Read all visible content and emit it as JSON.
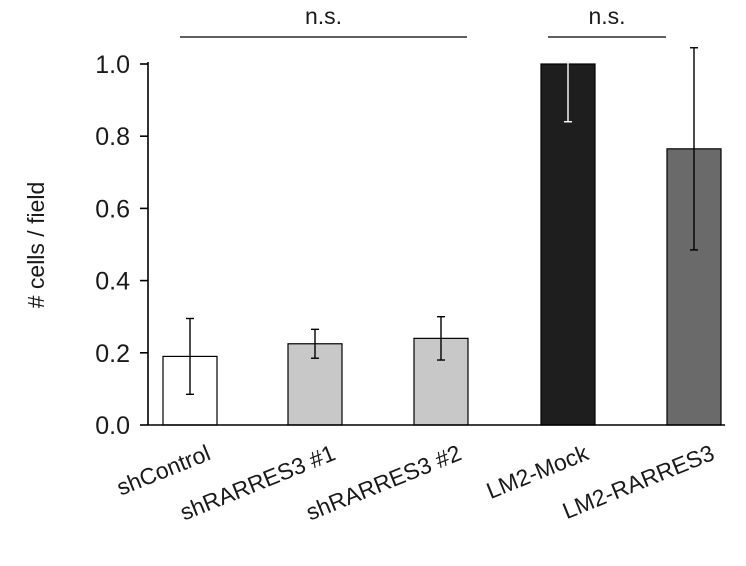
{
  "chart_data": {
    "type": "bar",
    "title": "",
    "xlabel": "",
    "ylabel": "# cells / field",
    "ylim": [
      0,
      1.0
    ],
    "yticks": [
      "0.0",
      "0.2",
      "0.4",
      "0.6",
      "0.8",
      "1.0"
    ],
    "grid": false,
    "categories": [
      "shControl",
      "shRARRES3 #1",
      "shRARRES3 #2",
      "LM2-Mock",
      "LM2-RARRES3"
    ],
    "values": [
      0.19,
      0.225,
      0.24,
      1.0,
      0.765
    ],
    "error": [
      0.105,
      0.04,
      0.06,
      0.16,
      0.28
    ],
    "colors": [
      "#ffffff",
      "#c8c8c8",
      "#c8c8c8",
      "#1e1e1e",
      "#6a6a6a"
    ],
    "error_colors": [
      "#000000",
      "#000000",
      "#000000",
      "#ffffff",
      "#000000"
    ],
    "significance": [
      {
        "label": "n.s.",
        "from": 0,
        "to": 2
      },
      {
        "label": "n.s.",
        "from": 3,
        "to": 4
      }
    ]
  }
}
